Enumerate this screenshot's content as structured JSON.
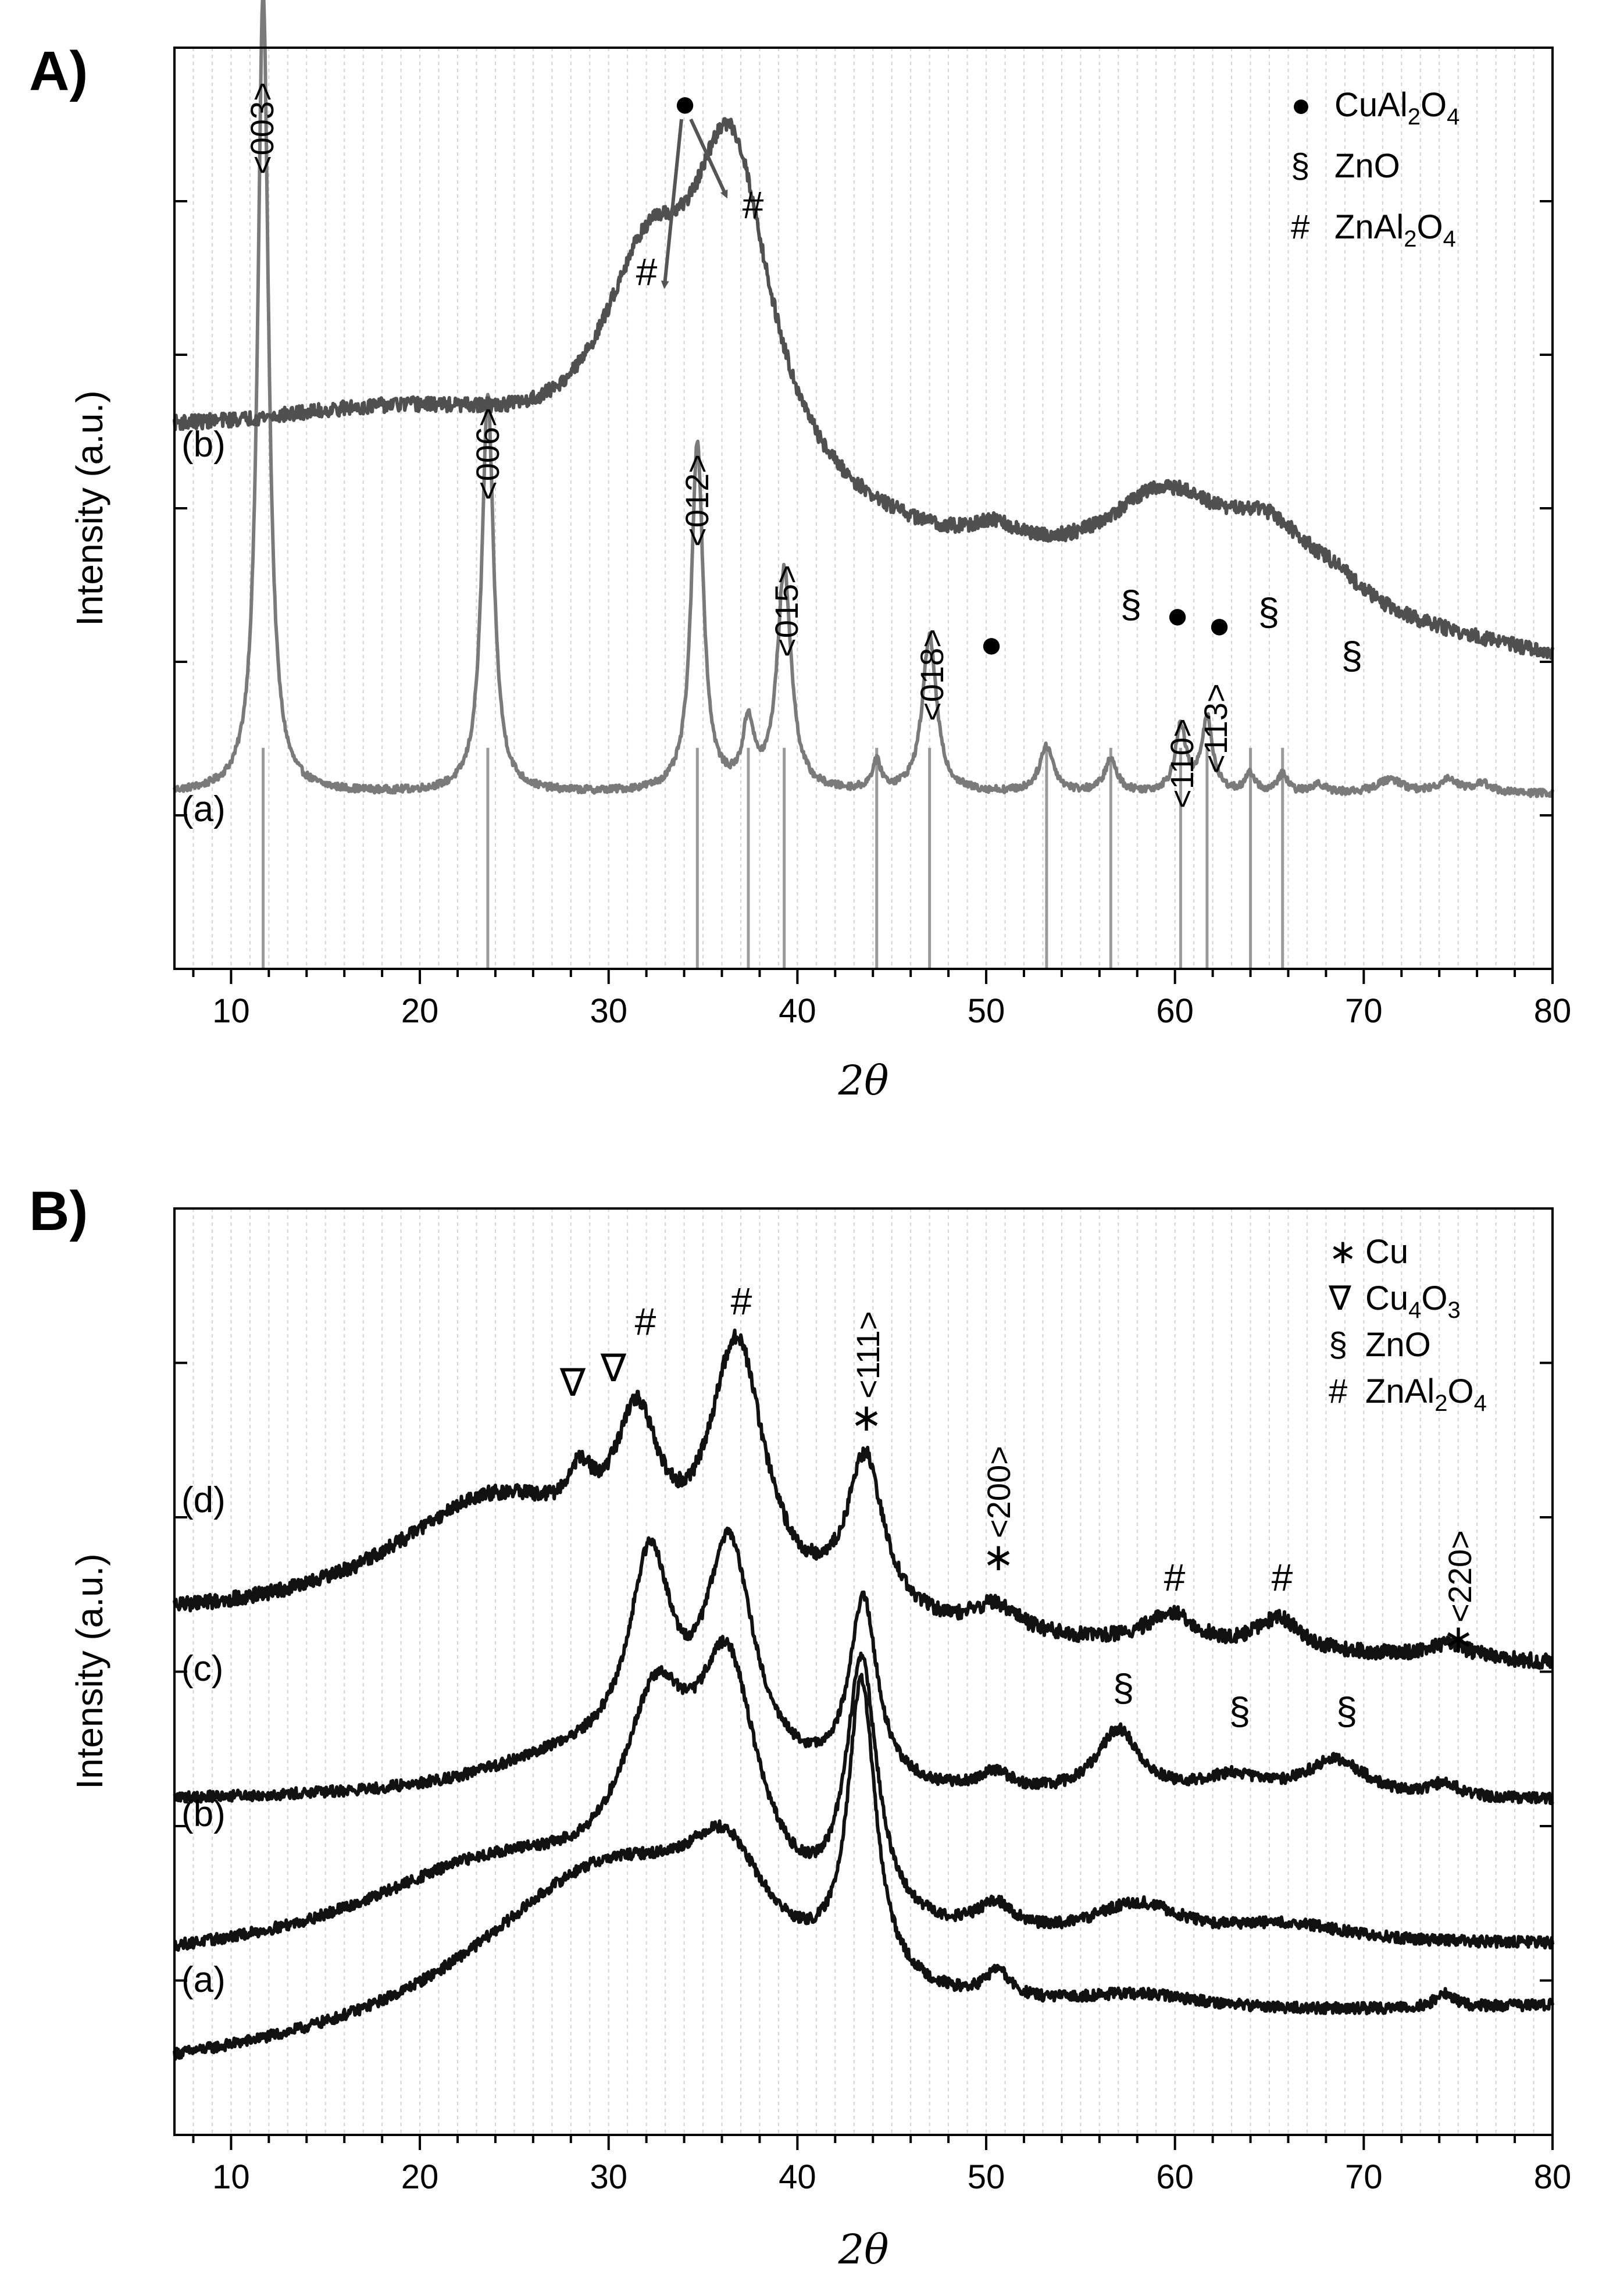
{
  "chart_data": [
    {
      "id": "A",
      "panel_label": "A)",
      "type": "line",
      "xlabel": "2θ",
      "ylabel": "Intensity (a.u.)",
      "xlim": [
        7,
        80
      ],
      "xticks": [
        10,
        20,
        30,
        40,
        50,
        60,
        70,
        80
      ],
      "grid": true,
      "legend": {
        "position": "top-right",
        "entries": [
          {
            "symbol": "●",
            "label": "CuAl",
            "sub1": "2",
            "mid": "O",
            "sub2": "4"
          },
          {
            "symbol": "§",
            "label": "ZnO",
            "sub1": "",
            "mid": "",
            "sub2": ""
          },
          {
            "symbol": "#",
            "label": "ZnAl",
            "sub1": "2",
            "mid": "O",
            "sub2": "4"
          }
        ]
      },
      "series": [
        {
          "name": "(a)",
          "color": "#7a7a7a",
          "baseline": 0.19,
          "slope": 0,
          "noise": 0.004,
          "peaks": [
            {
              "x": 11.7,
              "h": 0.87,
              "w": 0.35
            },
            {
              "x": 23.6,
              "h": 0.43,
              "w": 0.38
            },
            {
              "x": 34.7,
              "h": 0.38,
              "w": 0.38
            },
            {
              "x": 37.4,
              "h": 0.07,
              "w": 0.35
            },
            {
              "x": 39.3,
              "h": 0.24,
              "w": 0.45
            },
            {
              "x": 44.2,
              "h": 0.03,
              "w": 0.3
            },
            {
              "x": 47.0,
              "h": 0.17,
              "w": 0.45
            },
            {
              "x": 53.2,
              "h": 0.05,
              "w": 0.45
            },
            {
              "x": 56.6,
              "h": 0.035,
              "w": 0.4
            },
            {
              "x": 60.3,
              "h": 0.07,
              "w": 0.35
            },
            {
              "x": 61.7,
              "h": 0.08,
              "w": 0.35
            },
            {
              "x": 64.0,
              "h": 0.02,
              "w": 0.3
            },
            {
              "x": 65.7,
              "h": 0.02,
              "w": 0.3
            },
            {
              "x": 67.6,
              "h": 0.01,
              "w": 0.4
            },
            {
              "x": 71.4,
              "h": 0.015,
              "w": 0.8
            },
            {
              "x": 74.5,
              "h": 0.015,
              "w": 0.6
            },
            {
              "x": 76.3,
              "h": 0.01,
              "w": 0.6
            }
          ],
          "reference_lines": [
            11.7,
            23.6,
            34.7,
            37.4,
            39.3,
            44.2,
            47.0,
            53.2,
            56.6,
            60.3,
            61.7,
            64.0,
            65.7
          ]
        },
        {
          "name": "(b)",
          "color": "#505050",
          "baseline": 0.55,
          "slope": -0.003,
          "noise": 0.008,
          "peaks": [
            {
              "x": 20,
              "h": 0.08,
              "w": 12
            },
            {
              "x": 32,
              "h": 0.2,
              "w": 3
            },
            {
              "x": 36.5,
              "h": 0.36,
              "w": 2.6
            },
            {
              "x": 50.5,
              "h": 0.02,
              "w": 1.5
            },
            {
              "x": 59.5,
              "h": 0.1,
              "w": 4
            },
            {
              "x": 65,
              "h": 0.07,
              "w": 3
            },
            {
              "x": 68.5,
              "h": 0.02,
              "w": 2
            }
          ]
        }
      ],
      "annotations": [
        {
          "text": "<003>",
          "x": 11.7,
          "rotated": true
        },
        {
          "text": "<006>",
          "x": 23.6,
          "rotated": true
        },
        {
          "text": "<012>",
          "x": 34.7,
          "rotated": true
        },
        {
          "text": "<015>",
          "x": 39.3,
          "rotated": true
        },
        {
          "text": "<018>",
          "x": 47.0,
          "rotated": true
        },
        {
          "text": "<110>",
          "x": 60.3,
          "rotated": true
        },
        {
          "text": "<113>",
          "x": 61.8,
          "rotated": true
        },
        {
          "text": "●",
          "x": 34.2,
          "rotated": false
        },
        {
          "text": "#",
          "x": 31.9,
          "rotated": false
        },
        {
          "text": "#",
          "x": 38.0,
          "rotated": false
        },
        {
          "text": "●",
          "x": 50.3,
          "rotated": false
        },
        {
          "text": "§",
          "x": 57.5,
          "rotated": false
        },
        {
          "text": "●",
          "x": 60.0,
          "rotated": false
        },
        {
          "text": "●",
          "x": 62.2,
          "rotated": false
        },
        {
          "text": "§",
          "x": 65.0,
          "rotated": false
        },
        {
          "text": "§",
          "x": 68.7,
          "rotated": false
        }
      ]
    },
    {
      "id": "B",
      "panel_label": "B)",
      "type": "line",
      "xlabel": "2θ",
      "ylabel": "Intensity (a.u.)",
      "xlim": [
        7,
        80
      ],
      "xticks": [
        10,
        20,
        30,
        40,
        50,
        60,
        70,
        80
      ],
      "grid": true,
      "legend": {
        "position": "top-right",
        "entries": [
          {
            "symbol": "∗",
            "label": "Cu",
            "sub1": "",
            "mid": "",
            "sub2": ""
          },
          {
            "symbol": "∇",
            "label": "Cu",
            "sub1": "4",
            "mid": "O",
            "sub2": "3"
          },
          {
            "symbol": "§",
            "label": "ZnO",
            "sub1": "",
            "mid": "",
            "sub2": ""
          },
          {
            "symbol": "#",
            "label": "ZnAl",
            "sub1": "2",
            "mid": "O",
            "sub2": "4"
          }
        ]
      },
      "series": [
        {
          "name": "(a)",
          "color": "#111111",
          "baseline": 0.06,
          "slope": 0.001,
          "noise": 0.006,
          "peaks": [
            {
              "x": 30,
              "h": 0.2,
              "w": 9
            },
            {
              "x": 36.2,
              "h": 0.1,
              "w": 2.5
            },
            {
              "x": 43.4,
              "h": 0.32,
              "w": 0.9
            },
            {
              "x": 50.6,
              "h": 0.03,
              "w": 0.8
            },
            {
              "x": 58,
              "h": 0.02,
              "w": 5
            },
            {
              "x": 74.3,
              "h": 0.015,
              "w": 0.6
            }
          ]
        },
        {
          "name": "(b)",
          "color": "#111111",
          "baseline": 0.18,
          "slope": 0.0003,
          "noise": 0.006,
          "peaks": [
            {
              "x": 24,
              "h": 0.1,
              "w": 9
            },
            {
              "x": 32.5,
              "h": 0.2,
              "w": 2.2
            },
            {
              "x": 36.3,
              "h": 0.25,
              "w": 2.0
            },
            {
              "x": 43.4,
              "h": 0.28,
              "w": 1.0
            },
            {
              "x": 50.5,
              "h": 0.03,
              "w": 1.2
            },
            {
              "x": 58.0,
              "h": 0.04,
              "w": 3
            },
            {
              "x": 66,
              "h": 0.02,
              "w": 4
            }
          ]
        },
        {
          "name": "(c)",
          "color": "#111111",
          "baseline": 0.36,
          "slope": 0.0,
          "noise": 0.006,
          "peaks": [
            {
              "x": 28,
              "h": 0.04,
              "w": 6
            },
            {
              "x": 32.2,
              "h": 0.22,
              "w": 1.4
            },
            {
              "x": 36.4,
              "h": 0.25,
              "w": 1.6
            },
            {
              "x": 43.5,
              "h": 0.2,
              "w": 0.9
            },
            {
              "x": 50.5,
              "h": 0.02,
              "w": 1
            },
            {
              "x": 57.0,
              "h": 0.07,
              "w": 1.4
            },
            {
              "x": 63.0,
              "h": 0.02,
              "w": 2
            },
            {
              "x": 68.5,
              "h": 0.04,
              "w": 2
            },
            {
              "x": 74.3,
              "h": 0.015,
              "w": 0.8
            }
          ]
        },
        {
          "name": "(d)",
          "color": "#111111",
          "baseline": 0.55,
          "slope": -0.0006,
          "noise": 0.008,
          "peaks": [
            {
              "x": 24,
              "h": 0.14,
              "w": 7
            },
            {
              "x": 28.5,
              "h": 0.05,
              "w": 0.8
            },
            {
              "x": 31.5,
              "h": 0.16,
              "w": 1.5
            },
            {
              "x": 36.8,
              "h": 0.28,
              "w": 1.8
            },
            {
              "x": 43.6,
              "h": 0.17,
              "w": 1.2
            },
            {
              "x": 50.5,
              "h": 0.03,
              "w": 1.5
            },
            {
              "x": 59.8,
              "h": 0.035,
              "w": 1.6
            },
            {
              "x": 65.5,
              "h": 0.035,
              "w": 1.4
            },
            {
              "x": 74.5,
              "h": 0.015,
              "w": 1.5
            }
          ]
        }
      ],
      "annotations": [
        {
          "text": "∇",
          "x": 28.3,
          "rotated": false
        },
        {
          "text": "∇",
          "x": 30.0,
          "rotated": false
        },
        {
          "text": "#",
          "x": 31.8,
          "rotated": false
        },
        {
          "text": "#",
          "x": 36.8,
          "rotated": false
        },
        {
          "text": "∗",
          "x": 43.6,
          "rotated": false
        },
        {
          "text": "<111>",
          "x": 43.6,
          "rotated": true
        },
        {
          "text": "∗",
          "x": 50.5,
          "rotated": false
        },
        {
          "text": "<200>",
          "x": 50.5,
          "rotated": true
        },
        {
          "text": "#",
          "x": 59.8,
          "rotated": false
        },
        {
          "text": "#",
          "x": 65.3,
          "rotated": false
        },
        {
          "text": "∗",
          "x": 74.8,
          "rotated": false
        },
        {
          "text": "<220>",
          "x": 74.8,
          "rotated": true
        },
        {
          "text": "§",
          "x": 57.2,
          "rotated": false
        },
        {
          "text": "§",
          "x": 63.2,
          "rotated": false
        },
        {
          "text": "§",
          "x": 68.8,
          "rotated": false
        }
      ]
    }
  ]
}
